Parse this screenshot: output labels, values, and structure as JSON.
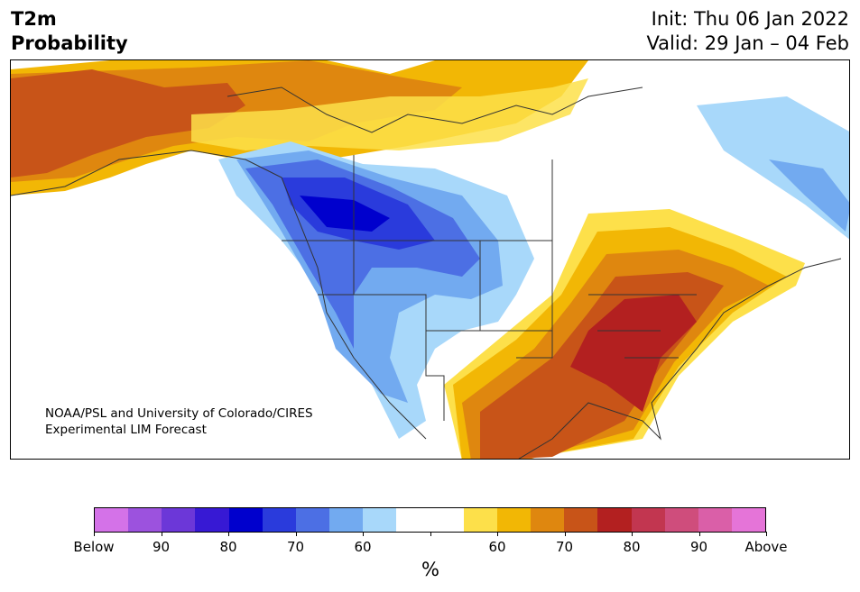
{
  "header": {
    "title_line1": "T2m",
    "title_line2": "Probability",
    "init": "Init: Thu 06 Jan 2022",
    "valid": "Valid: 29 Jan – 04 Feb"
  },
  "credit": {
    "line1": "NOAA/PSL and University of Colorado/CIRES",
    "line2": "Experimental LIM Forecast"
  },
  "colorbar": {
    "colors": [
      "#d472e8",
      "#9c52de",
      "#6c37d8",
      "#3719d4",
      "#0000cd",
      "#2a3bdc",
      "#4c6fe4",
      "#72aaf0",
      "#a8d8fa",
      "#ffffff",
      "#ffffff",
      "#fde04a",
      "#f2b705",
      "#df870f",
      "#c85418",
      "#b32020",
      "#c23650",
      "#cf4d7c",
      "#da5fa8",
      "#e574d8"
    ],
    "labels": [
      "Below",
      "90",
      "80",
      "70",
      "60",
      "",
      "60",
      "70",
      "80",
      "90",
      "Above"
    ],
    "units": "%"
  },
  "map": {
    "land_color": "#ffffff",
    "border_color": "#333333"
  }
}
